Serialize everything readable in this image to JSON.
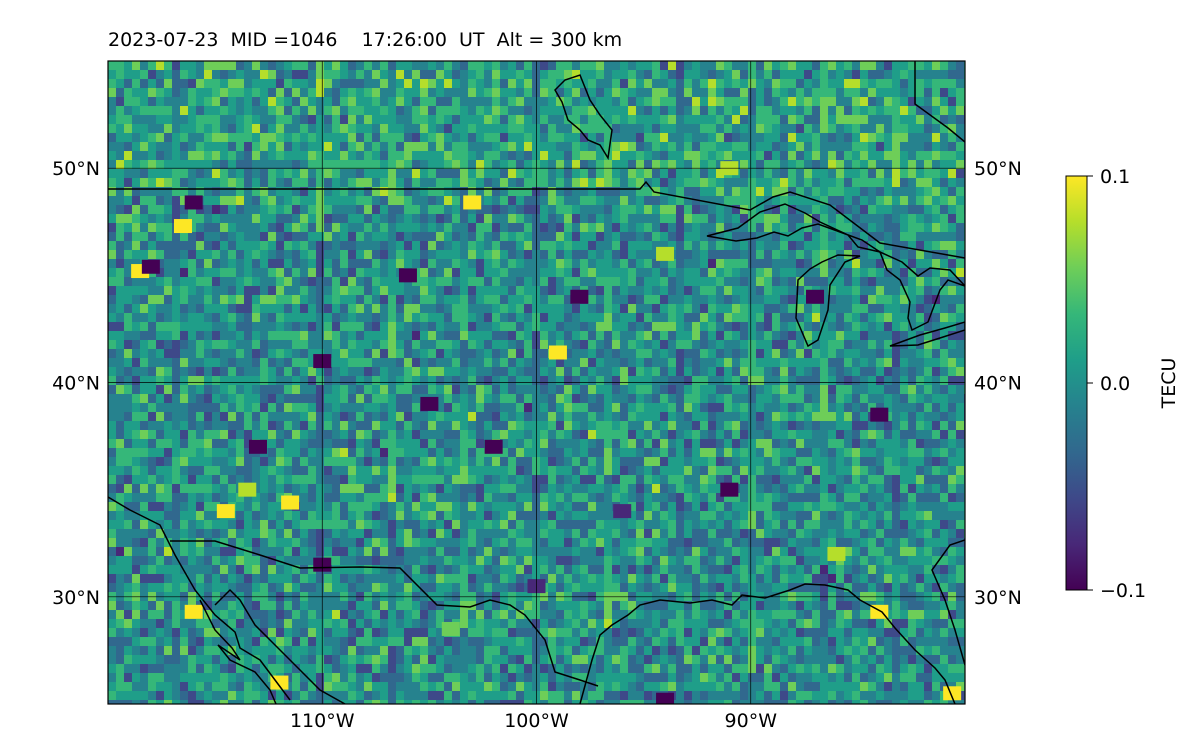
{
  "chart_data": {
    "type": "heatmap",
    "title": "2023-07-23  MID =1046    17:26:00  UT  Alt = 300 km",
    "map_extent": {
      "lon": [
        -120,
        -80
      ],
      "lat": [
        25,
        55
      ]
    },
    "lon_ticks": [
      -110,
      -100,
      -90
    ],
    "lon_tick_labels": [
      "110°W",
      "100°W",
      "90°W"
    ],
    "lat_ticks": [
      30,
      40,
      50
    ],
    "lat_tick_labels": [
      "30°N",
      "40°N",
      "50°N"
    ],
    "grid": true,
    "colormap": "viridis",
    "colorbar": {
      "label": "TECU",
      "range": [
        -0.1,
        0.1
      ],
      "ticks": [
        0.1,
        0.0,
        -0.1
      ],
      "tick_labels": [
        "0.1",
        "0.0",
        "−0.1"
      ],
      "colors": [
        "#440154",
        "#482878",
        "#3e4989",
        "#31688e",
        "#26828e",
        "#1f9e89",
        "#35b779",
        "#6ece58",
        "#b5de2b",
        "#fde725"
      ]
    },
    "background_value": 0.0,
    "anomalies": [
      {
        "lon": -118.5,
        "lat": 45.2,
        "value": 0.1
      },
      {
        "lon": -118.0,
        "lat": 45.4,
        "value": -0.1
      },
      {
        "lon": -116.5,
        "lat": 47.3,
        "value": 0.1
      },
      {
        "lon": -116.0,
        "lat": 48.4,
        "value": -0.1
      },
      {
        "lon": -114.5,
        "lat": 34.0,
        "value": 0.1
      },
      {
        "lon": -113.5,
        "lat": 35.0,
        "value": 0.08
      },
      {
        "lon": -111.5,
        "lat": 34.4,
        "value": 0.1
      },
      {
        "lon": -113.0,
        "lat": 37.0,
        "value": -0.1
      },
      {
        "lon": -110.0,
        "lat": 31.5,
        "value": -0.1
      },
      {
        "lon": -110.0,
        "lat": 41.0,
        "value": -0.1
      },
      {
        "lon": -106.0,
        "lat": 45.0,
        "value": -0.1
      },
      {
        "lon": -103.0,
        "lat": 48.4,
        "value": 0.1
      },
      {
        "lon": -102.0,
        "lat": 37.0,
        "value": -0.1
      },
      {
        "lon": -98.0,
        "lat": 44.0,
        "value": -0.1
      },
      {
        "lon": -99.0,
        "lat": 41.4,
        "value": 0.1
      },
      {
        "lon": -105.0,
        "lat": 39.0,
        "value": -0.1
      },
      {
        "lon": -94.0,
        "lat": 46.0,
        "value": 0.08
      },
      {
        "lon": -91.0,
        "lat": 50.0,
        "value": 0.08
      },
      {
        "lon": -87.0,
        "lat": 44.0,
        "value": -0.1
      },
      {
        "lon": -91.0,
        "lat": 35.0,
        "value": -0.1
      },
      {
        "lon": -84.0,
        "lat": 38.5,
        "value": -0.1
      },
      {
        "lon": -86.0,
        "lat": 32.0,
        "value": 0.08
      },
      {
        "lon": -84.0,
        "lat": 29.3,
        "value": 0.1
      },
      {
        "lon": -80.6,
        "lat": 25.5,
        "value": 0.1
      },
      {
        "lon": -94.0,
        "lat": 25.2,
        "value": -0.1
      },
      {
        "lon": -112.0,
        "lat": 26.0,
        "value": 0.1
      },
      {
        "lon": -116.0,
        "lat": 29.3,
        "value": 0.1
      },
      {
        "lon": -104.0,
        "lat": 28.5,
        "value": 0.06
      },
      {
        "lon": -100.0,
        "lat": 30.5,
        "value": -0.08
      },
      {
        "lon": -96.0,
        "lat": 34.0,
        "value": -0.08
      }
    ]
  }
}
